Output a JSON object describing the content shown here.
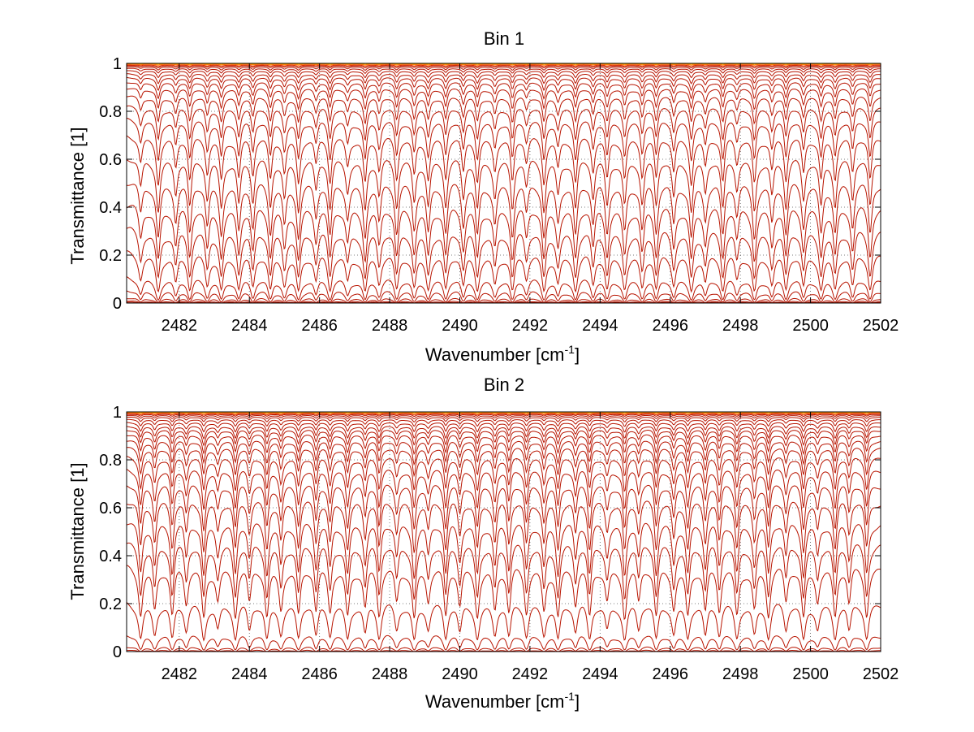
{
  "chart_data": [
    {
      "type": "line",
      "title": "Bin 1",
      "xlabel": "Wavenumber [cm",
      "xlabel_sup": "-1",
      "xlabel_close": "]",
      "ylabel": "Transmittance [1]",
      "xlim": [
        2480.5,
        2502
      ],
      "ylim": [
        0,
        1
      ],
      "xticks": [
        2482,
        2484,
        2486,
        2488,
        2490,
        2492,
        2494,
        2496,
        2498,
        2500,
        2502
      ],
      "xtick_labels": [
        "2482",
        "2484",
        "2486",
        "2488",
        "2490",
        "2492",
        "2494",
        "2496",
        "2498",
        "2500",
        "2502"
      ],
      "yticks": [
        0,
        0.2,
        0.4,
        0.6,
        0.8,
        1
      ],
      "ytick_labels": [
        "0",
        "0.2",
        "0.4",
        "0.6",
        "0.8",
        "1"
      ],
      "grid": true,
      "grid_style": "dotted",
      "line_color": "#b81400",
      "top_line_colors": [
        "#ff8c00",
        "#ffb000",
        "#ff6a00",
        "#e23200"
      ],
      "baseline_levels": [
        1.0,
        0.998,
        0.996,
        0.993,
        0.99,
        0.985,
        0.978,
        0.968,
        0.955,
        0.94,
        0.92,
        0.895,
        0.86,
        0.815,
        0.76,
        0.69,
        0.6,
        0.5,
        0.4,
        0.3,
        0.2,
        0.1,
        0.05,
        0.02,
        0.008,
        0.003
      ],
      "absorption_lines": [
        2480.9,
        2481.4,
        2481.9,
        2482.3,
        2482.8,
        2483.2,
        2483.7,
        2484.1,
        2484.6,
        2485.0,
        2485.4,
        2485.9,
        2486.3,
        2486.8,
        2487.3,
        2487.7,
        2488.2,
        2488.7,
        2489.1,
        2489.6,
        2490.1,
        2490.5,
        2491.0,
        2491.5,
        2491.9,
        2492.4,
        2492.8,
        2493.3,
        2493.8,
        2494.2,
        2494.7,
        2495.2,
        2495.6,
        2496.1,
        2496.6,
        2497.0,
        2497.5,
        2497.9,
        2498.4,
        2498.9,
        2499.3,
        2499.8,
        2500.3,
        2500.7,
        2501.2,
        2501.7
      ]
    },
    {
      "type": "line",
      "title": "Bin 2",
      "xlabel": "Wavenumber [cm",
      "xlabel_sup": "-1",
      "xlabel_close": "]",
      "ylabel": "Transmittance [1]",
      "xlim": [
        2480.5,
        2502
      ],
      "ylim": [
        0,
        1
      ],
      "xticks": [
        2482,
        2484,
        2486,
        2488,
        2490,
        2492,
        2494,
        2496,
        2498,
        2500,
        2502
      ],
      "xtick_labels": [
        "2482",
        "2484",
        "2486",
        "2488",
        "2490",
        "2492",
        "2494",
        "2496",
        "2498",
        "2500",
        "2502"
      ],
      "yticks": [
        0,
        0.2,
        0.4,
        0.6,
        0.8,
        1
      ],
      "ytick_labels": [
        "0",
        "0.2",
        "0.4",
        "0.6",
        "0.8",
        "1"
      ],
      "grid": true,
      "grid_style": "dotted",
      "line_color": "#b81400",
      "top_line_colors": [
        "#ff8c00",
        "#ffb000",
        "#ff6a00",
        "#e23200"
      ],
      "baseline_levels": [
        1.0,
        0.998,
        0.996,
        0.993,
        0.99,
        0.985,
        0.978,
        0.968,
        0.955,
        0.94,
        0.925,
        0.905,
        0.88,
        0.85,
        0.81,
        0.76,
        0.7,
        0.63,
        0.54,
        0.45,
        0.35,
        0.2,
        0.07,
        0.02,
        0.006
      ],
      "absorption_lines": [
        2480.9,
        2481.3,
        2481.8,
        2482.2,
        2482.7,
        2483.1,
        2483.6,
        2484.0,
        2484.5,
        2484.9,
        2485.4,
        2485.9,
        2486.3,
        2486.8,
        2487.3,
        2487.7,
        2488.2,
        2488.7,
        2489.1,
        2489.6,
        2490.0,
        2490.5,
        2491.0,
        2491.4,
        2491.9,
        2492.4,
        2492.8,
        2493.3,
        2493.7,
        2494.2,
        2494.7,
        2495.1,
        2495.6,
        2496.1,
        2496.5,
        2497.0,
        2497.4,
        2497.9,
        2498.4,
        2498.8,
        2499.3,
        2499.8,
        2500.2,
        2500.7,
        2501.1,
        2501.6
      ]
    }
  ]
}
